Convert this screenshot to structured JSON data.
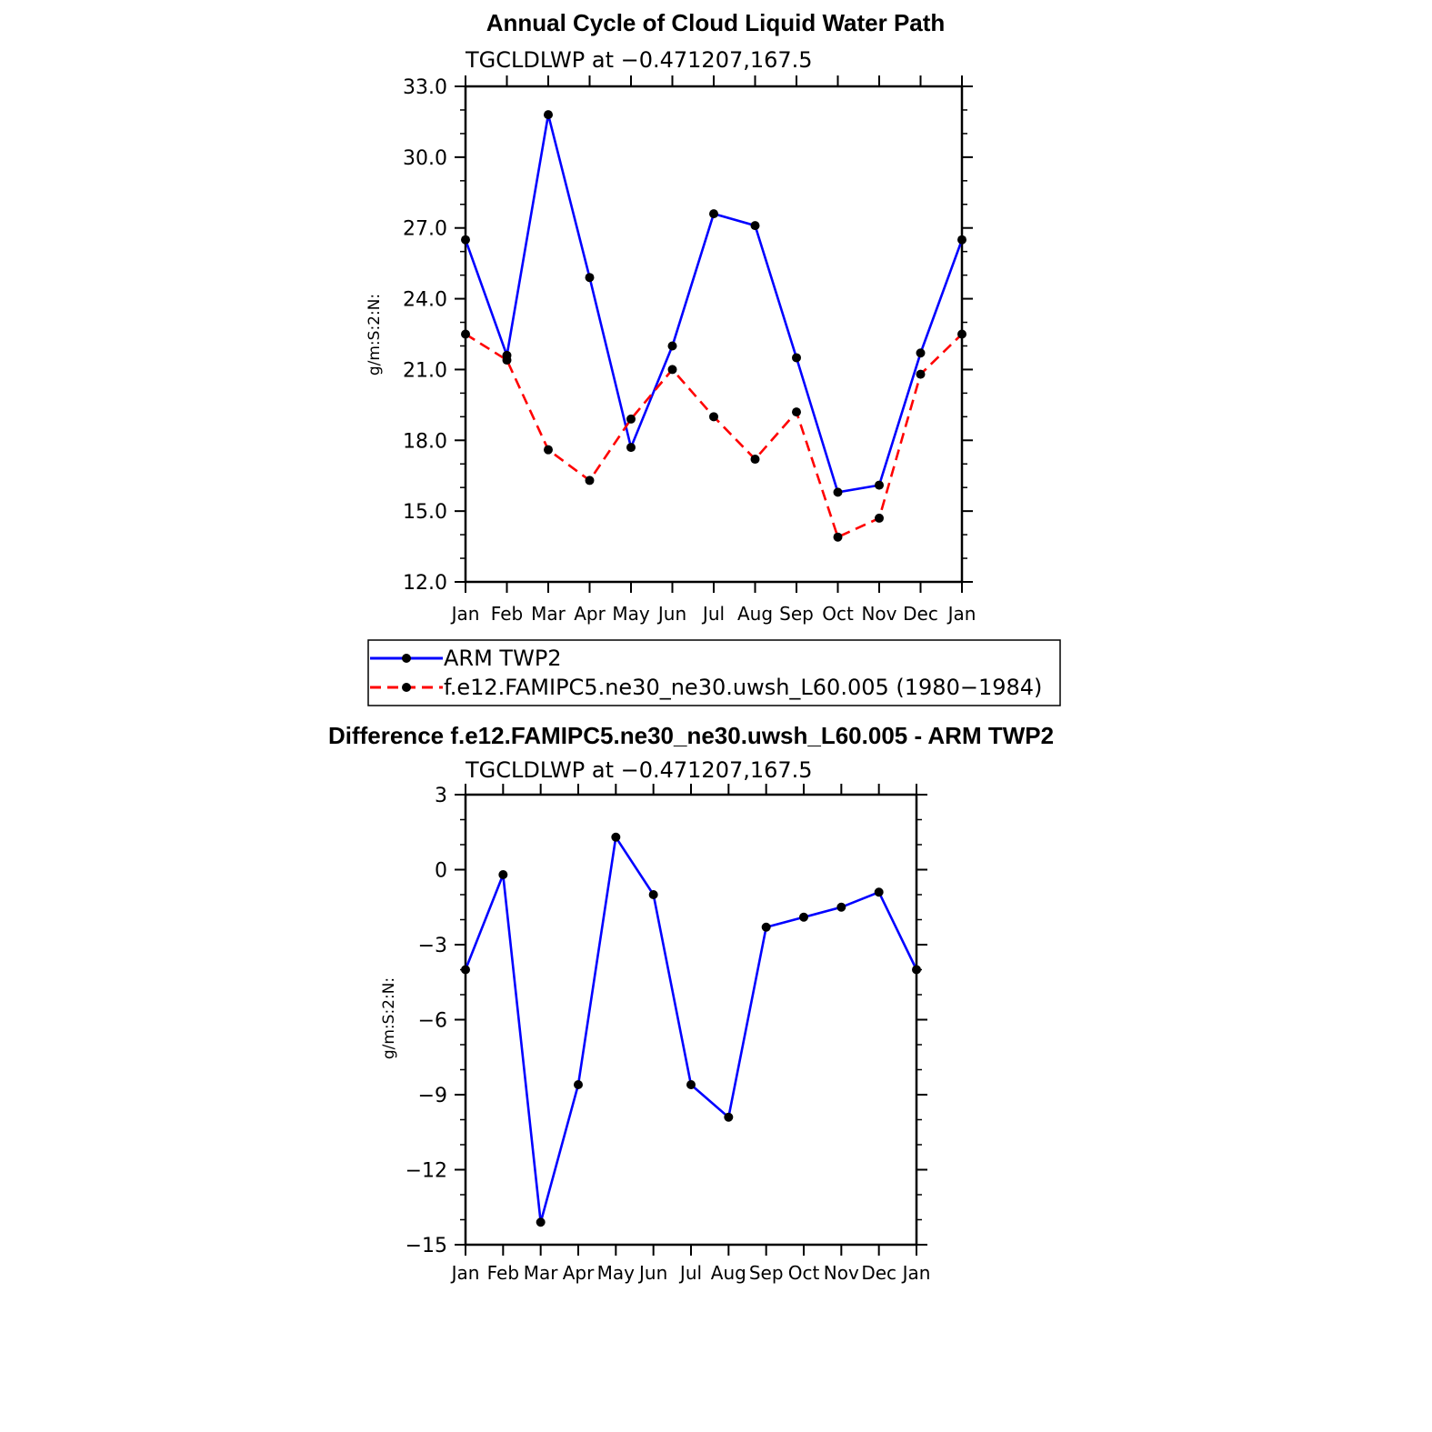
{
  "chart_data": [
    {
      "type": "line",
      "title": "Annual Cycle of Cloud Liquid Water Path",
      "subtitle": "TGCLDLWP at −0.471207,167.5",
      "xlabel": "",
      "ylabel": "g/m:S:2:N:",
      "categories": [
        "Jan",
        "Feb",
        "Mar",
        "Apr",
        "May",
        "Jun",
        "Jul",
        "Aug",
        "Sep",
        "Oct",
        "Nov",
        "Dec",
        "Jan"
      ],
      "ylim": [
        12.0,
        33.0
      ],
      "yticks": [
        "12.0",
        "15.0",
        "18.0",
        "21.0",
        "24.0",
        "27.0",
        "30.0",
        "33.0"
      ],
      "series": [
        {
          "name": "ARM TWP2",
          "color": "#0000ff",
          "dash": "solid",
          "values": [
            26.5,
            21.6,
            31.8,
            24.9,
            17.7,
            22.0,
            27.6,
            27.1,
            21.5,
            15.8,
            16.1,
            21.7,
            26.5
          ]
        },
        {
          "name": "f.e12.FAMIPC5.ne30_ne30.uwsh_L60.005 (1980−1984)",
          "color": "#ff0000",
          "dash": "dashed",
          "values": [
            22.5,
            21.4,
            17.6,
            16.3,
            18.9,
            21.0,
            19.0,
            17.2,
            19.2,
            13.9,
            14.7,
            20.8,
            22.5
          ]
        }
      ],
      "legend": "below"
    },
    {
      "type": "line",
      "title": "Difference f.e12.FAMIPC5.ne30_ne30.uwsh_L60.005 - ARM TWP2",
      "subtitle": "TGCLDLWP at −0.471207,167.5",
      "xlabel": "",
      "ylabel": "g/m:S:2:N:",
      "categories": [
        "Jan",
        "Feb",
        "Mar",
        "Apr",
        "May",
        "Jun",
        "Jul",
        "Aug",
        "Sep",
        "Oct",
        "Nov",
        "Dec",
        "Jan"
      ],
      "ylim": [
        -15,
        3
      ],
      "yticks": [
        "−15",
        "−12",
        "−9",
        "−6",
        "−3",
        "0",
        "3"
      ],
      "series": [
        {
          "name": "Difference",
          "color": "#0000ff",
          "dash": "solid",
          "values": [
            -4.0,
            -0.2,
            -14.1,
            -8.6,
            1.3,
            -1.0,
            -8.6,
            -9.9,
            -2.3,
            -1.9,
            -1.5,
            -0.9,
            -4.0
          ]
        }
      ]
    }
  ]
}
